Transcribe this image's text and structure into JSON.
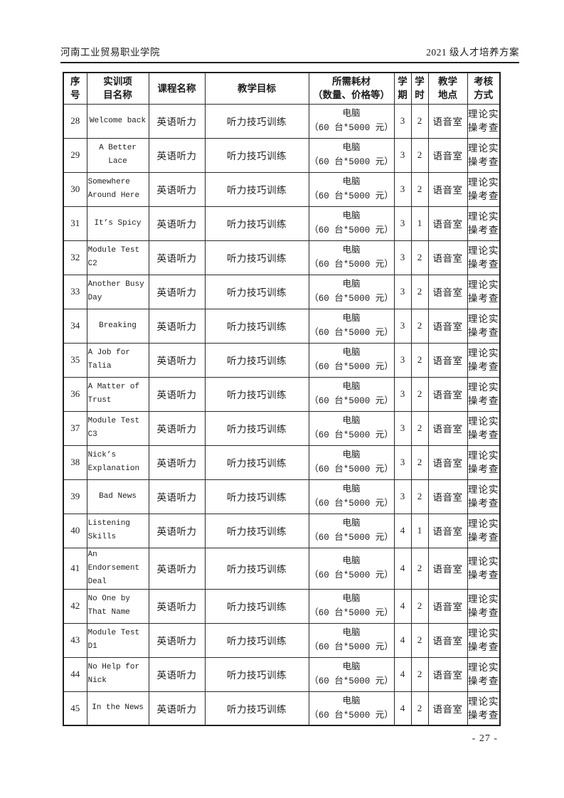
{
  "page": {
    "header_left": "河南工业贸易职业学院",
    "header_right": "2021 级人才培养方案",
    "footer_page": "- 27 -"
  },
  "table": {
    "columns": [
      {
        "key": "index",
        "label": "序\n号"
      },
      {
        "key": "project",
        "label": "实训项\n目名称"
      },
      {
        "key": "course",
        "label": "课程名称"
      },
      {
        "key": "goal",
        "label": "教学目标"
      },
      {
        "key": "materials",
        "label": "所需耗材\n（数量、价格等）"
      },
      {
        "key": "semester",
        "label": "学\n期"
      },
      {
        "key": "hours",
        "label": "学\n时"
      },
      {
        "key": "location",
        "label": "教学\n地点"
      },
      {
        "key": "assessment",
        "label": "考核\n方式"
      }
    ],
    "rows": [
      {
        "index": "28",
        "project": "Welcome back",
        "course": "英语听力",
        "goal": "听力技巧训练",
        "materials": "电脑\n（60 台*5000 元）",
        "semester": "3",
        "hours": "2",
        "location": "语音室",
        "assessment": "理论实\n操考查"
      },
      {
        "index": "29",
        "project": "A Better Lace",
        "course": "英语听力",
        "goal": "听力技巧训练",
        "materials": "电脑\n（60 台*5000 元）",
        "semester": "3",
        "hours": "2",
        "location": "语音室",
        "assessment": "理论实\n操考查"
      },
      {
        "index": "30",
        "project": "Somewhere Around Here",
        "course": "英语听力",
        "goal": "听力技巧训练",
        "materials": "电脑\n（60 台*5000 元）",
        "semester": "3",
        "hours": "2",
        "location": "语音室",
        "assessment": "理论实\n操考查"
      },
      {
        "index": "31",
        "project": "It’s Spicy",
        "course": "英语听力",
        "goal": "听力技巧训练",
        "materials": "电脑\n（60 台*5000 元）",
        "semester": "3",
        "hours": "1",
        "location": "语音室",
        "assessment": "理论实\n操考查"
      },
      {
        "index": "32",
        "project": "Module Test C2",
        "course": "英语听力",
        "goal": "听力技巧训练",
        "materials": "电脑\n（60 台*5000 元）",
        "semester": "3",
        "hours": "2",
        "location": "语音室",
        "assessment": "理论实\n操考查"
      },
      {
        "index": "33",
        "project": "Another Busy Day",
        "course": "英语听力",
        "goal": "听力技巧训练",
        "materials": "电脑\n（60 台*5000 元）",
        "semester": "3",
        "hours": "2",
        "location": "语音室",
        "assessment": "理论实\n操考查"
      },
      {
        "index": "34",
        "project": "Breaking",
        "course": "英语听力",
        "goal": "听力技巧训练",
        "materials": "电脑\n（60 台*5000 元）",
        "semester": "3",
        "hours": "2",
        "location": "语音室",
        "assessment": "理论实\n操考查"
      },
      {
        "index": "35",
        "project": "A Job for Talia",
        "course": "英语听力",
        "goal": "听力技巧训练",
        "materials": "电脑\n（60 台*5000 元）",
        "semester": "3",
        "hours": "2",
        "location": "语音室",
        "assessment": "理论实\n操考查"
      },
      {
        "index": "36",
        "project": "A Matter of Trust",
        "course": "英语听力",
        "goal": "听力技巧训练",
        "materials": "电脑\n（60 台*5000 元）",
        "semester": "3",
        "hours": "2",
        "location": "语音室",
        "assessment": "理论实\n操考查"
      },
      {
        "index": "37",
        "project": "Module Test C3",
        "course": "英语听力",
        "goal": "听力技巧训练",
        "materials": "电脑\n（60 台*5000 元）",
        "semester": "3",
        "hours": "2",
        "location": "语音室",
        "assessment": "理论实\n操考查"
      },
      {
        "index": "38",
        "project": "Nick’s Explanation",
        "course": "英语听力",
        "goal": "听力技巧训练",
        "materials": "电脑\n（60 台*5000 元）",
        "semester": "3",
        "hours": "2",
        "location": "语音室",
        "assessment": "理论实\n操考查"
      },
      {
        "index": "39",
        "project": "Bad News",
        "course": "英语听力",
        "goal": "听力技巧训练",
        "materials": "电脑\n（60 台*5000 元）",
        "semester": "3",
        "hours": "2",
        "location": "语音室",
        "assessment": "理论实\n操考查"
      },
      {
        "index": "40",
        "project": "Listening Skills",
        "course": "英语听力",
        "goal": "听力技巧训练",
        "materials": "电脑\n（60 台*5000 元）",
        "semester": "4",
        "hours": "1",
        "location": "语音室",
        "assessment": "理论实\n操考查"
      },
      {
        "index": "41",
        "project": "An Endorsement Deal",
        "course": "英语听力",
        "goal": "听力技巧训练",
        "materials": "电脑\n（60 台*5000 元）",
        "semester": "4",
        "hours": "2",
        "location": "语音室",
        "assessment": "理论实\n操考查"
      },
      {
        "index": "42",
        "project": "No One by That Name",
        "course": "英语听力",
        "goal": "听力技巧训练",
        "materials": "电脑\n（60 台*5000 元）",
        "semester": "4",
        "hours": "2",
        "location": "语音室",
        "assessment": "理论实\n操考查"
      },
      {
        "index": "43",
        "project": "Module Test D1",
        "course": "英语听力",
        "goal": "听力技巧训练",
        "materials": "电脑\n（60 台*5000 元）",
        "semester": "4",
        "hours": "2",
        "location": "语音室",
        "assessment": "理论实\n操考查"
      },
      {
        "index": "44",
        "project": "No Help for Nick",
        "course": "英语听力",
        "goal": "听力技巧训练",
        "materials": "电脑\n（60 台*5000 元）",
        "semester": "4",
        "hours": "2",
        "location": "语音室",
        "assessment": "理论实\n操考查"
      },
      {
        "index": "45",
        "project": "In the News",
        "course": "英语听力",
        "goal": "听力技巧训练",
        "materials": "电脑\n（60 台*5000 元）",
        "semester": "4",
        "hours": "2",
        "location": "语音室",
        "assessment": "理论实\n操考查"
      }
    ]
  }
}
